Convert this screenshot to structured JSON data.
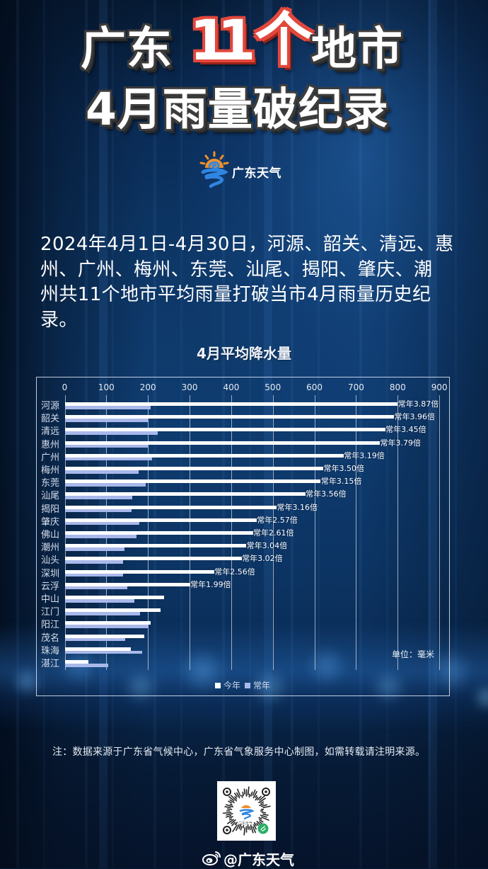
{
  "header": {
    "title_line1_a": "广东",
    "title_highlight_digits": "11",
    "title_highlight_char": "个",
    "title_line1_b": "地市",
    "title_line2": "4月雨量破纪录"
  },
  "brand": {
    "icon": "guangdong-weather-logo-icon",
    "name": "广东天气"
  },
  "intro": {
    "lines": [
      "2024年4月1日-4月30日，河源、韶关、清远、惠",
      "州、广州、梅州、东莞、汕尾、揭阳、肇庆、潮",
      "州共11个地市平均雨量打破当市4月雨量历史纪",
      "录。"
    ]
  },
  "chart_data": {
    "type": "bar",
    "orientation": "horizontal",
    "title": "4月平均降水量",
    "xlabel": "",
    "ylabel": "",
    "unit_label": "单位：毫米",
    "xlim": [
      0,
      900
    ],
    "xticks": [
      0,
      100,
      200,
      300,
      400,
      500,
      600,
      700,
      800,
      900
    ],
    "grid": true,
    "legend_position": "bottom",
    "categories": [
      "河源",
      "韶关",
      "清远",
      "惠州",
      "广州",
      "梅州",
      "东莞",
      "汕尾",
      "揭阳",
      "肇庆",
      "佛山",
      "潮州",
      "汕头",
      "深圳",
      "云浮",
      "中山",
      "江门",
      "阳江",
      "茂名",
      "珠海",
      "湛江"
    ],
    "series": [
      {
        "name": "今年",
        "color": "#ffffff",
        "values": [
          800,
          791,
          770,
          757,
          670,
          621,
          615,
          578,
          509,
          461,
          452,
          436,
          425,
          359,
          301,
          238,
          231,
          206,
          192,
          159,
          57
        ]
      },
      {
        "name": "常年",
        "color": "#a9b8ea",
        "values": [
          207,
          200,
          223,
          200,
          210,
          177,
          195,
          162,
          161,
          179,
          173,
          143,
          141,
          140,
          151,
          167,
          181,
          201,
          146,
          186,
          104
        ]
      }
    ],
    "annotations": [
      "常年3.87倍",
      "常年3.96倍",
      "常年3.45倍",
      "常年3.79倍",
      "常年3.19倍",
      "常年3.50倍",
      "常年3.15倍",
      "常年3.56倍",
      "常年3.16倍",
      "常年2.57倍",
      "常年2.61倍",
      "常年3.04倍",
      "常年3.02倍",
      "常年2.56倍",
      "常年1.99倍",
      null,
      null,
      null,
      null,
      null,
      null
    ]
  },
  "footer": {
    "note": "注：数据来源于广东省气候中心，广东省气象服务中心制图，如需转载请注明来源。",
    "qr_label": "广东天气",
    "weibo_icon": "weibo-icon",
    "weibo_handle": "@广东天气"
  },
  "colors": {
    "background": "#0d3766",
    "highlight_stroke": "#e2473b",
    "title_shadow": "#3c3c3c",
    "logo_orange": "#f0902c",
    "logo_blue": "#2f86e0",
    "miniprogram_green": "#2aae67"
  }
}
